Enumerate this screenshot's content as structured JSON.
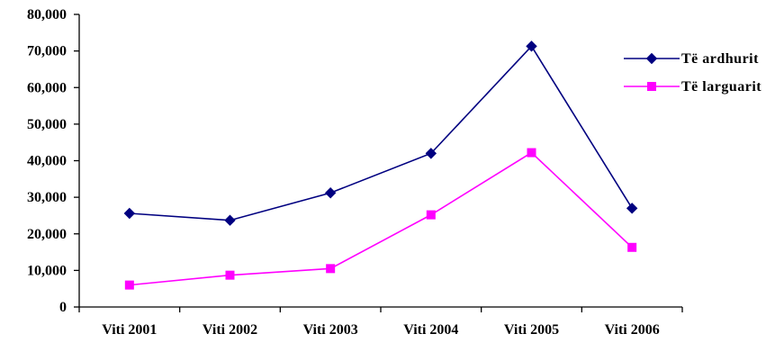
{
  "chart_data": {
    "type": "line",
    "title": "",
    "xlabel": "",
    "ylabel": "",
    "categories": [
      "Viti 2001",
      "Viti 2002",
      "Viti 2003",
      "Viti 2004",
      "Viti 2005",
      "Viti 2006"
    ],
    "ylim": [
      0,
      80000
    ],
    "yticks": [
      0,
      10000,
      20000,
      30000,
      40000,
      50000,
      60000,
      70000,
      80000
    ],
    "ytick_labels": [
      "0",
      "10,000",
      "20,000",
      "30,000",
      "40,000",
      "50,000",
      "60,000",
      "70,000",
      "80,000"
    ],
    "grid": false,
    "legend_position": "right",
    "series": [
      {
        "name": "Të ardhurit",
        "color": "#000080",
        "marker": "diamond",
        "values": [
          25600,
          23700,
          31200,
          42000,
          71300,
          27000
        ]
      },
      {
        "name": "Të larguarit",
        "color": "#FF00FF",
        "marker": "square",
        "values": [
          6000,
          8700,
          10500,
          25200,
          42200,
          16300
        ]
      }
    ]
  }
}
